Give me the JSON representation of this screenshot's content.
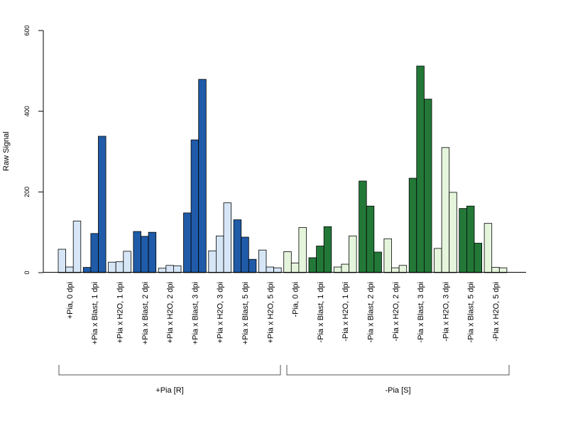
{
  "chart_data": {
    "type": "bar",
    "title": "",
    "xlabel": "",
    "ylabel": "Raw Signal",
    "ylim": [
      0,
      600
    ],
    "yticks": [
      0,
      200,
      400,
      600
    ],
    "grid": false,
    "legend": "none",
    "categories": [
      "+Pia, 0 dpi",
      "+Pia x Blast, 1 dpi",
      "+Pia x H2O, 1 dpi",
      "+Pia x Blast, 2 dpi",
      "+Pia x H2O, 2 dpi",
      "+Pia x Blast, 3 dpi",
      "+Pia x H2O, 3 dpi",
      "+Pia x Blast, 5 dpi",
      "+Pia x H2O, 5 dpi",
      "-Pia, 0 dpi",
      "-Pia x Blast, 1 dpi",
      "-Pia x H2O, 1 dpi",
      "-Pia x Blast, 2 dpi",
      "-Pia x H2O, 2 dpi",
      "-Pia x Blast, 3 dpi",
      "-Pia x H2O, 3 dpi",
      "-Pia x Blast, 5 dpi",
      "-Pia x H2O, 5 dpi"
    ],
    "values": [
      [
        58,
        14,
        128
      ],
      [
        13,
        97,
        338
      ],
      [
        26,
        27,
        53
      ],
      [
        102,
        90,
        100
      ],
      [
        11,
        18,
        17
      ],
      [
        148,
        329,
        479
      ],
      [
        54,
        91,
        173
      ],
      [
        131,
        88,
        33
      ],
      [
        56,
        14,
        12
      ],
      [
        52,
        24,
        112
      ],
      [
        37,
        66,
        114
      ],
      [
        14,
        21,
        91
      ],
      [
        227,
        165,
        51
      ],
      [
        84,
        12,
        18
      ],
      [
        234,
        512,
        430
      ],
      [
        60,
        310,
        199
      ],
      [
        159,
        165,
        73
      ],
      [
        122,
        13,
        12
      ]
    ],
    "bar_colors": [
      "#d6e6f6",
      "#1f5ba8",
      "#d6e6f6",
      "#1f5ba8",
      "#d6e6f6",
      "#1f5ba8",
      "#d6e6f6",
      "#1f5ba8",
      "#d6e6f6",
      "#e4f5dc",
      "#237838",
      "#e4f5dc",
      "#237838",
      "#e4f5dc",
      "#237838",
      "#e4f5dc",
      "#237838",
      "#e4f5dc"
    ],
    "groups": [
      {
        "label": "+Pia [R]",
        "first_category": 0,
        "last_category": 8
      },
      {
        "label": "-Pia [S]",
        "first_category": 9,
        "last_category": 17
      }
    ]
  }
}
